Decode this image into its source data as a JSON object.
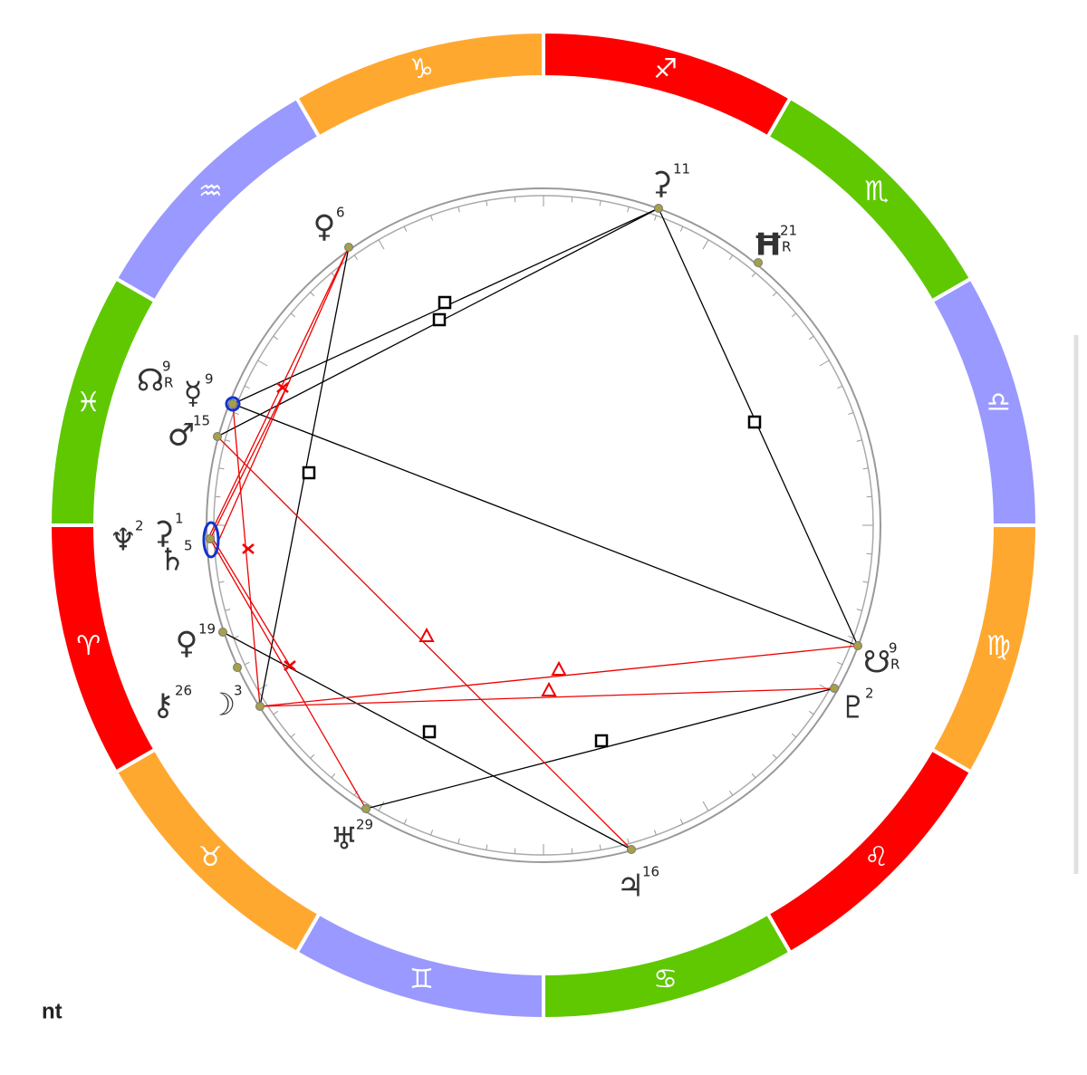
{
  "signs": [
    "♐",
    "♏",
    "♎",
    "♍",
    "♌",
    "♋",
    "♊",
    "♉",
    "♈",
    "♓",
    "♒",
    "♑"
  ],
  "planets": [
    {
      "glyph": "⚳",
      "degree": "11"
    },
    {
      "glyph": "Ħ",
      "degree": "21",
      "retro": "R"
    },
    {
      "glyph": "♀",
      "degree": "6"
    },
    {
      "glyph": "☊",
      "degree": "9",
      "retro": "R"
    },
    {
      "glyph": "☿",
      "degree": "9"
    },
    {
      "glyph": "♂",
      "degree": "15"
    },
    {
      "glyph": "♆",
      "degree": "2"
    },
    {
      "glyph": "⚳",
      "degree": "1"
    },
    {
      "glyph": "♄",
      "degree": "5"
    },
    {
      "glyph": "♀",
      "degree": "19"
    },
    {
      "glyph": "⚷",
      "degree": "26"
    },
    {
      "glyph": "☽",
      "degree": "3"
    },
    {
      "glyph": "♅",
      "degree": "29"
    },
    {
      "glyph": "♃",
      "degree": "16"
    },
    {
      "glyph": "☋",
      "degree": "9",
      "retro": "R"
    },
    {
      "glyph": "♇",
      "degree": "2"
    }
  ],
  "footer": "nt"
}
